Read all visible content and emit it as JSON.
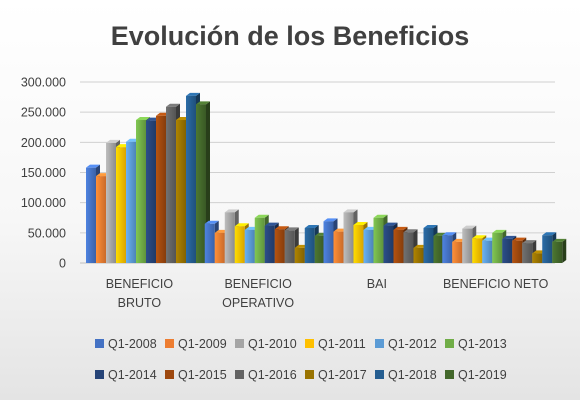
{
  "chart_data": {
    "type": "bar",
    "title": "Evolución de los Beneficios",
    "xlabel": "",
    "ylabel": "",
    "ylim": [
      0,
      300000
    ],
    "yticks": [
      "0",
      "50.000",
      "100.000",
      "150.000",
      "200.000",
      "250.000",
      "300.000"
    ],
    "ytick_values": [
      0,
      50000,
      100000,
      150000,
      200000,
      250000,
      300000
    ],
    "grid": true,
    "legend_position": "bottom",
    "categories": [
      [
        "BENEFICIO",
        "BRUTO"
      ],
      [
        "BENEFICIO",
        "OPERATIVO"
      ],
      [
        "BAI"
      ],
      [
        "BENEFICIO NETO"
      ]
    ],
    "series": [
      {
        "name": "Q1-2008",
        "color": "#4472c4",
        "values": [
          158000,
          65000,
          69000,
          46000
        ]
      },
      {
        "name": "Q1-2009",
        "color": "#ed7d31",
        "values": [
          144000,
          50000,
          52000,
          35000
        ]
      },
      {
        "name": "Q1-2010",
        "color": "#a5a5a5",
        "values": [
          199000,
          84000,
          84000,
          57000
        ]
      },
      {
        "name": "Q1-2011",
        "color": "#ffc000",
        "values": [
          192000,
          61000,
          63000,
          41000
        ]
      },
      {
        "name": "Q1-2012",
        "color": "#5b9bd5",
        "values": [
          201000,
          55000,
          55000,
          37000
        ]
      },
      {
        "name": "Q1-2013",
        "color": "#70ad47",
        "values": [
          237000,
          75000,
          75000,
          50000
        ]
      },
      {
        "name": "Q1-2014",
        "color": "#264478",
        "values": [
          236000,
          62000,
          62000,
          40000
        ]
      },
      {
        "name": "Q1-2015",
        "color": "#9e480e",
        "values": [
          244000,
          56000,
          55000,
          37000
        ]
      },
      {
        "name": "Q1-2016",
        "color": "#636363",
        "values": [
          259000,
          54000,
          51000,
          33000
        ]
      },
      {
        "name": "Q1-2017",
        "color": "#997300",
        "values": [
          237000,
          25000,
          25000,
          16000
        ]
      },
      {
        "name": "Q1-2018",
        "color": "#255e91",
        "values": [
          277000,
          58000,
          58000,
          46000
        ]
      },
      {
        "name": "Q1-2019",
        "color": "#43682b",
        "values": [
          263000,
          45000,
          45000,
          35000
        ]
      }
    ]
  }
}
